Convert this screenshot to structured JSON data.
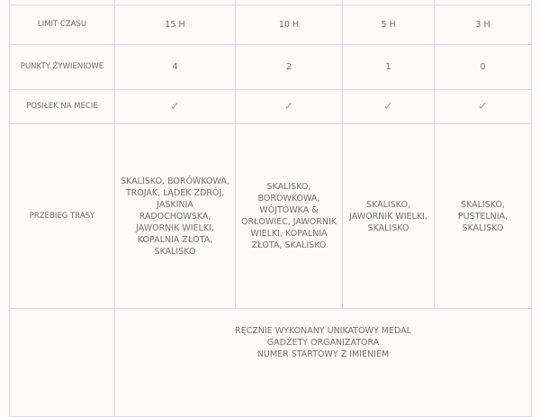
{
  "rows": [
    {
      "label": "",
      "values": [
        "",
        "",
        "",
        ""
      ]
    },
    {
      "label": "LIMIT CZASU",
      "values": [
        "15 H",
        "10 H",
        "5 H",
        "3 H"
      ]
    },
    {
      "label": "PUNKTY ŻYWIENIOWE",
      "values": [
        "4",
        "2",
        "1",
        "0"
      ]
    },
    {
      "label": "POSIŁEK NA MECIE",
      "values": [
        "✓",
        "✓",
        "✓",
        "✓"
      ]
    },
    {
      "label": "PRZEBIEG TRASY",
      "values": [
        "SKALISKO, BORÓWKOWA, TROJAK, LĄDEK ZDRÓJ, JASKINIA RADOCHOWSKA, JAWORNIK WIELKI, KOPALNIA ZŁOTA, SKALISKO",
        "SKALISKO, BORÓWKOWA, WÓJTÓWKA & ORŁOWIEC, JAWORNIK WIELKI, KOPALNIA ZŁOTA, SKALISKO",
        "SKALISKO, JAWORNIK WIELKI, SKALISKO",
        "SKALISKO, PUSTELNIA, SKALISKO"
      ]
    }
  ],
  "prizes": {
    "label": "",
    "lines": [
      "RĘCZNIE WYKONANY UNIKATOWY MEDAL",
      "GADŻETY ORGANIZATORA",
      "NUMER STARTOWY Z IMIENIEM"
    ]
  },
  "colors": {
    "border": "#dcd5ec",
    "check": "#a99ad0",
    "text": "#707070",
    "background": "#fdfaf7"
  }
}
